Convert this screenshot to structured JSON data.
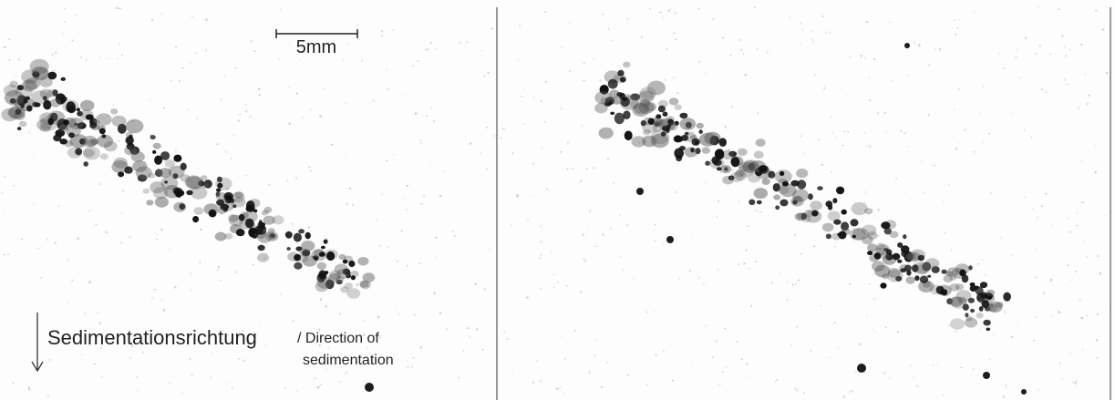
{
  "left_panel": {
    "scale_bar": {
      "label": "5mm"
    },
    "caption": {
      "main": "Sedimentationsrichtung",
      "translation_line1": "/ Direction of",
      "translation_line2": "sedimentation"
    }
  }
}
